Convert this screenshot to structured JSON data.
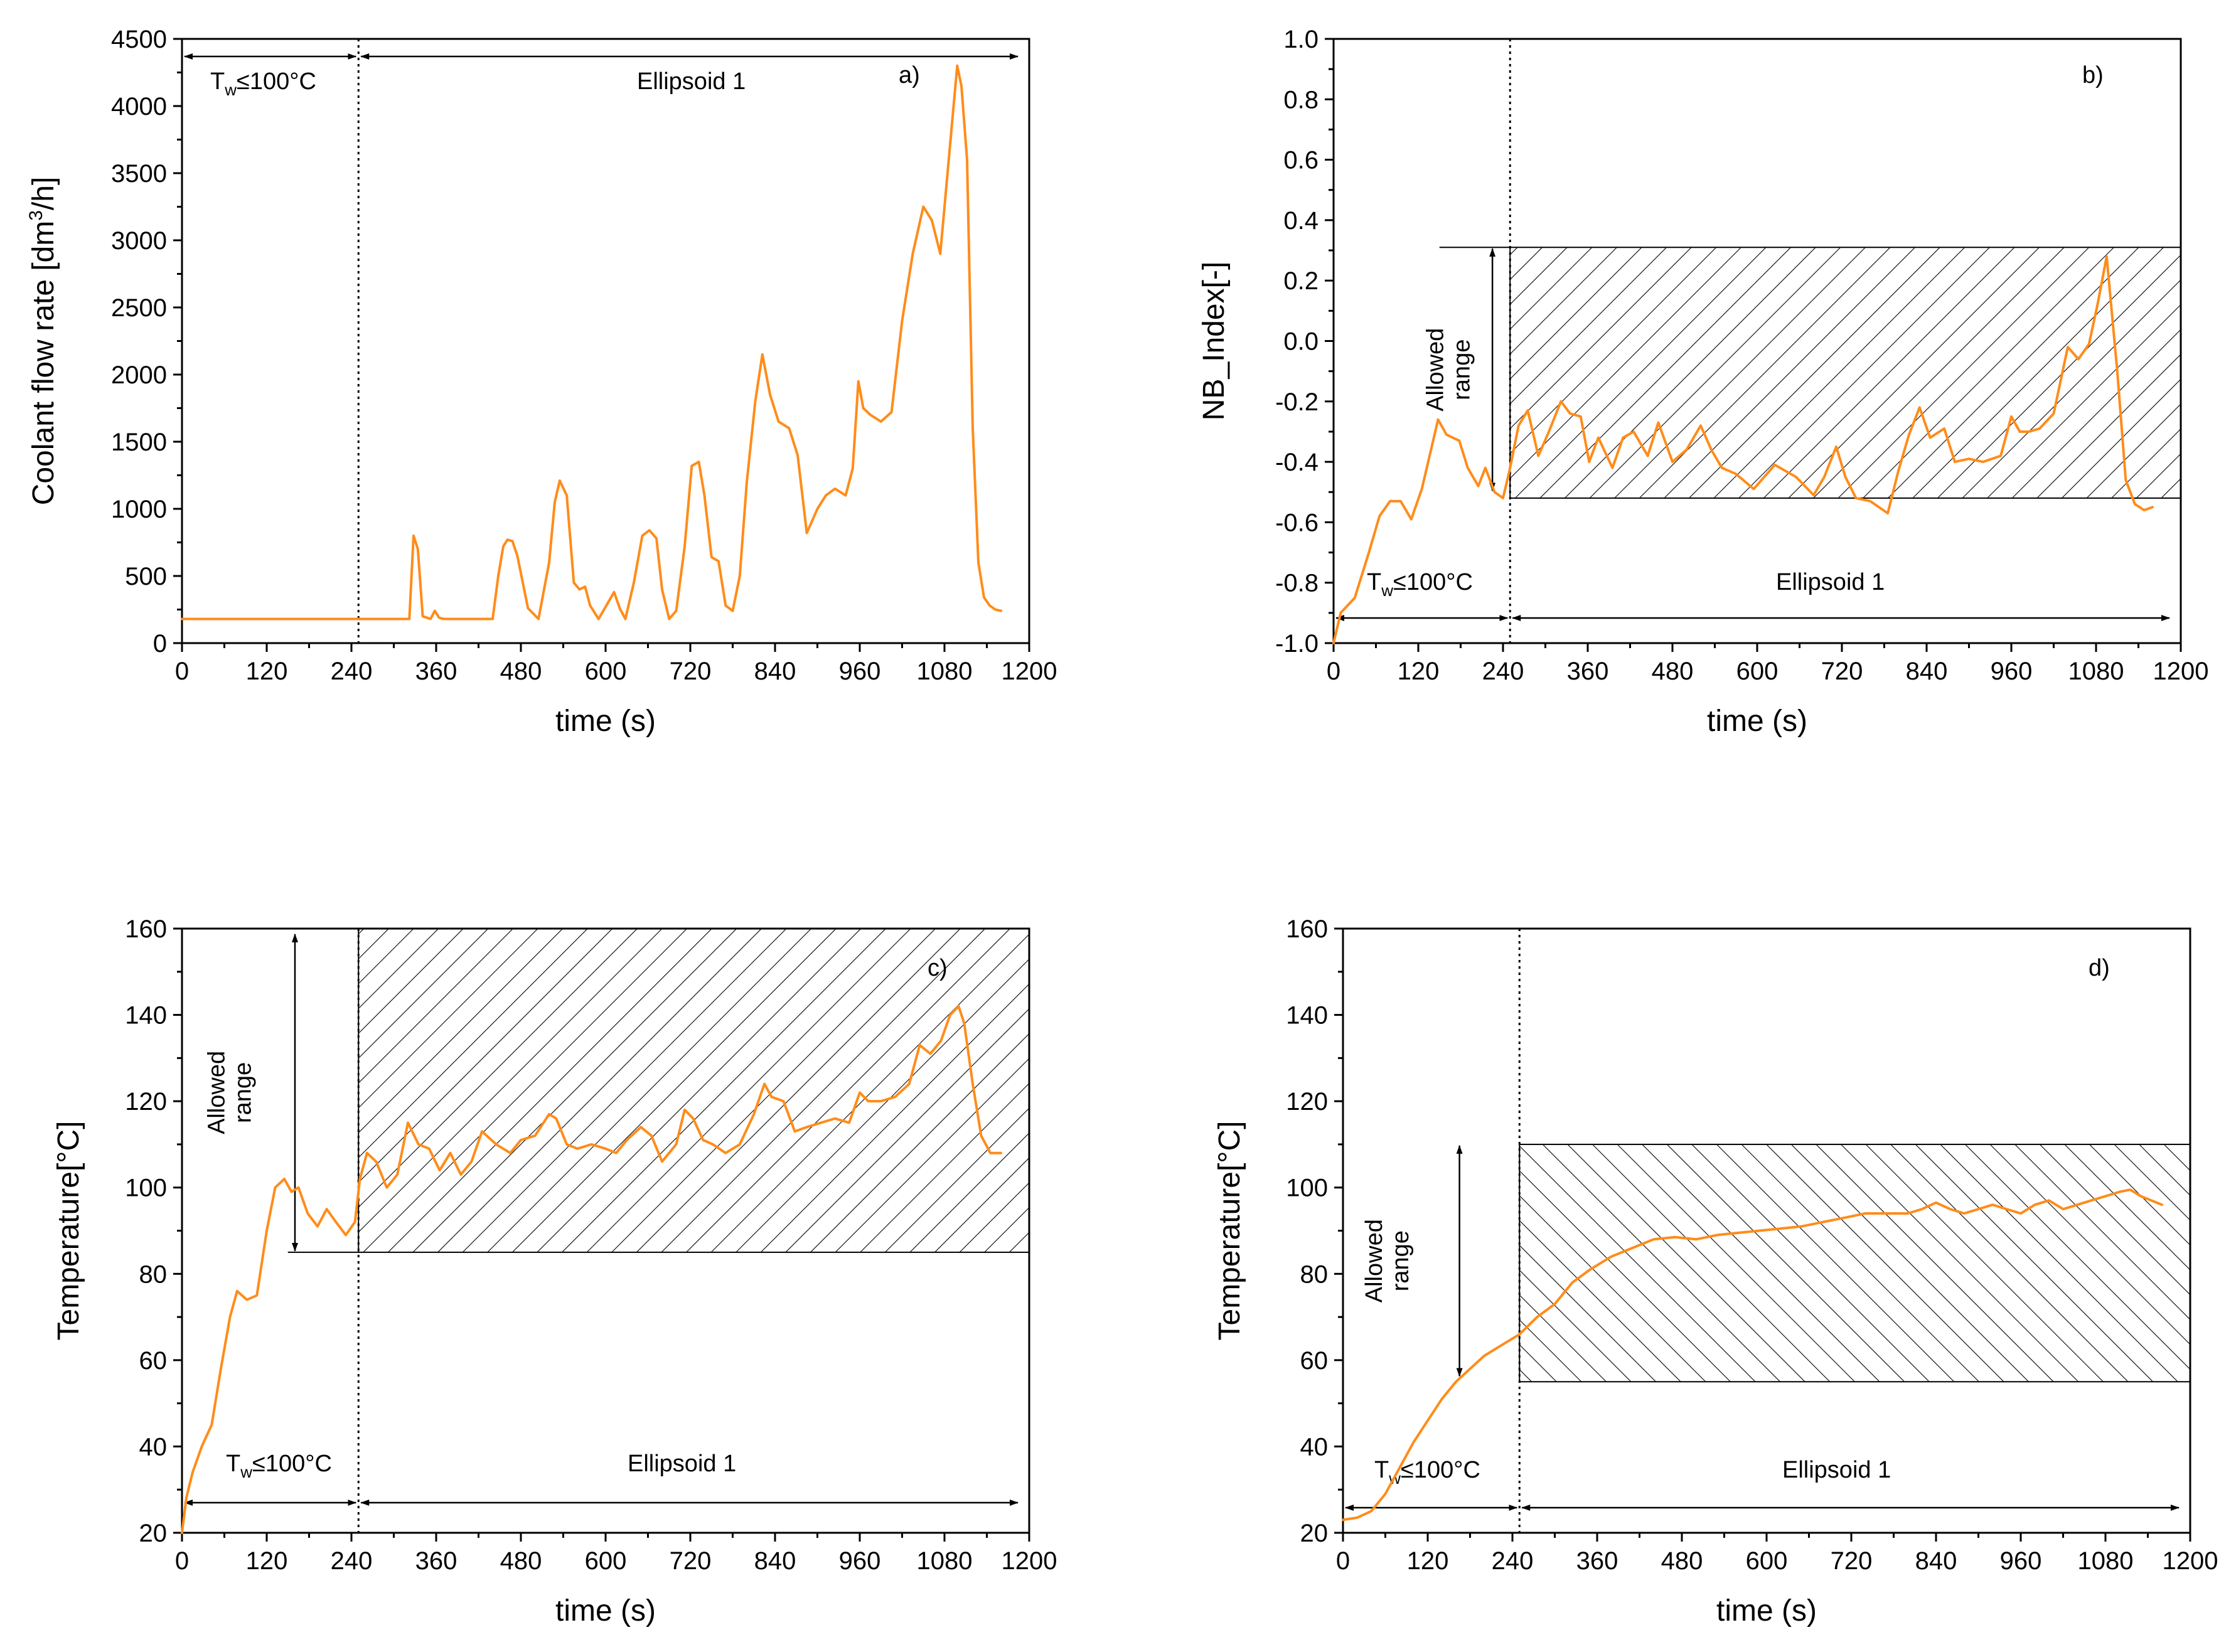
{
  "chart_data": [
    {
      "id": "a",
      "type": "line",
      "panel_label": "a)",
      "xlabel": "time (s)",
      "ylabel": "Coolant flow rate [dm3/h]",
      "ylabel_main": "Coolant flow rate [dm",
      "ylabel_sup": "3",
      "ylabel_end": "/h]",
      "xlim": [
        0,
        1200
      ],
      "ylim": [
        0,
        4500
      ],
      "xticks": [
        0,
        120,
        240,
        360,
        480,
        600,
        720,
        840,
        960,
        1080,
        1200
      ],
      "yticks": [
        0,
        500,
        1000,
        1500,
        2000,
        2500,
        3000,
        3500,
        4000,
        4500
      ],
      "divider_x": 250,
      "phase_labels": {
        "first": "T",
        "first_sub": "w",
        "first_tail": "≤100°C",
        "second": "Ellipsoid 1"
      },
      "series": [
        {
          "name": "Coolant flow rate",
          "color": "#ff8c1a",
          "x": [
            0,
            250,
            322,
            328,
            334,
            341,
            352,
            358,
            364,
            370,
            440,
            448,
            455,
            461,
            468,
            475,
            490,
            505,
            520,
            528,
            535,
            545,
            555,
            563,
            571,
            578,
            590,
            600,
            612,
            620,
            628,
            640,
            652,
            662,
            672,
            680,
            690,
            700,
            712,
            722,
            732,
            740,
            750,
            760,
            770,
            780,
            790,
            800,
            812,
            822,
            833,
            845,
            860,
            872,
            885,
            900,
            912,
            925,
            940,
            950,
            958,
            965,
            975,
            990,
            1005,
            1020,
            1035,
            1050,
            1062,
            1074,
            1086,
            1098,
            1104,
            1112,
            1120,
            1128,
            1136,
            1144,
            1152,
            1160
          ],
          "y": [
            180,
            180,
            180,
            800,
            700,
            200,
            180,
            240,
            190,
            180,
            180,
            500,
            720,
            770,
            760,
            650,
            260,
            180,
            600,
            1050,
            1210,
            1100,
            450,
            400,
            420,
            280,
            180,
            270,
            380,
            260,
            180,
            450,
            800,
            840,
            780,
            400,
            180,
            240,
            720,
            1320,
            1350,
            1100,
            640,
            610,
            280,
            240,
            500,
            1200,
            1800,
            2150,
            1850,
            1650,
            1600,
            1400,
            820,
            1000,
            1100,
            1150,
            1100,
            1300,
            1950,
            1750,
            1700,
            1650,
            1720,
            2400,
            2900,
            3250,
            3150,
            2900,
            3600,
            4300,
            4150,
            3600,
            1600,
            600,
            340,
            280,
            250,
            240
          ]
        }
      ]
    },
    {
      "id": "b",
      "type": "line",
      "panel_label": "b)",
      "xlabel": "time (s)",
      "ylabel": "NB_Index[-]",
      "xlim": [
        0,
        1200
      ],
      "ylim": [
        -1.0,
        1.0
      ],
      "xticks": [
        0,
        120,
        240,
        360,
        480,
        600,
        720,
        840,
        960,
        1080,
        1200
      ],
      "yticks": [
        "-1.0",
        "-0.8",
        "-0.6",
        "-0.4",
        "-0.2",
        "0.0",
        "0.2",
        "0.4",
        "0.6",
        "0.8",
        "1.0"
      ],
      "divider_x": 250,
      "allowed_range": {
        "x0": 250,
        "x1": 1200,
        "y0": -0.52,
        "y1": 0.31,
        "label_line1": "Allowed",
        "label_line2": "range"
      },
      "phase_labels": {
        "first": "T",
        "first_sub": "w",
        "first_tail": "≤100°C",
        "second": "Ellipsoid 1"
      },
      "series": [
        {
          "name": "NB_Index",
          "color": "#ff8c1a",
          "x": [
            0,
            10,
            30,
            50,
            65,
            80,
            95,
            110,
            125,
            138,
            148,
            160,
            178,
            190,
            205,
            215,
            228,
            240,
            250,
            262,
            275,
            290,
            305,
            322,
            335,
            350,
            362,
            375,
            395,
            410,
            425,
            445,
            460,
            480,
            500,
            520,
            535,
            550,
            570,
            595,
            625,
            655,
            680,
            695,
            712,
            725,
            740,
            760,
            785,
            800,
            815,
            830,
            845,
            865,
            880,
            900,
            920,
            945,
            960,
            972,
            985,
            1000,
            1020,
            1040,
            1055,
            1070,
            1082,
            1095,
            1110,
            1122,
            1135,
            1148,
            1160
          ],
          "y": [
            -1.0,
            -0.9,
            -0.85,
            -0.7,
            -0.58,
            -0.53,
            -0.53,
            -0.59,
            -0.49,
            -0.36,
            -0.26,
            -0.31,
            -0.33,
            -0.42,
            -0.48,
            -0.42,
            -0.5,
            -0.52,
            -0.42,
            -0.28,
            -0.23,
            -0.38,
            -0.3,
            -0.2,
            -0.24,
            -0.25,
            -0.4,
            -0.32,
            -0.42,
            -0.32,
            -0.3,
            -0.38,
            -0.27,
            -0.4,
            -0.36,
            -0.28,
            -0.36,
            -0.42,
            -0.44,
            -0.49,
            -0.41,
            -0.45,
            -0.51,
            -0.45,
            -0.35,
            -0.45,
            -0.52,
            -0.53,
            -0.57,
            -0.43,
            -0.31,
            -0.22,
            -0.32,
            -0.29,
            -0.4,
            -0.39,
            -0.4,
            -0.38,
            -0.25,
            -0.3,
            -0.3,
            -0.29,
            -0.24,
            -0.02,
            -0.06,
            -0.01,
            0.12,
            0.28,
            -0.1,
            -0.46,
            -0.54,
            -0.56,
            -0.55
          ]
        }
      ]
    },
    {
      "id": "c",
      "type": "line",
      "panel_label": "c)",
      "xlabel": "time (s)",
      "ylabel": "Temperature[°C]",
      "xlim": [
        0,
        1200
      ],
      "ylim": [
        20,
        160
      ],
      "xticks": [
        0,
        120,
        240,
        360,
        480,
        600,
        720,
        840,
        960,
        1080,
        1200
      ],
      "yticks": [
        20,
        40,
        60,
        80,
        100,
        120,
        140,
        160
      ],
      "divider_x": 250,
      "allowed_range": {
        "x0": 250,
        "x1": 1200,
        "y0": 85,
        "y1": 160,
        "label_line1": "Allowed",
        "label_line2": "range"
      },
      "phase_labels": {
        "first": "T",
        "first_sub": "w",
        "first_tail": "≤100°C",
        "second": "Ellipsoid 1"
      },
      "series": [
        {
          "name": "Temperature",
          "color": "#ff8c1a",
          "x": [
            0,
            6,
            15,
            28,
            42,
            55,
            68,
            78,
            92,
            106,
            120,
            132,
            145,
            155,
            165,
            178,
            192,
            205,
            218,
            232,
            245,
            252,
            262,
            275,
            290,
            305,
            320,
            335,
            350,
            365,
            380,
            395,
            410,
            425,
            445,
            465,
            480,
            500,
            520,
            530,
            545,
            560,
            580,
            600,
            615,
            630,
            650,
            665,
            680,
            700,
            712,
            724,
            738,
            752,
            770,
            790,
            810,
            825,
            835,
            852,
            868,
            885,
            905,
            925,
            945,
            960,
            972,
            990,
            1010,
            1030,
            1045,
            1060,
            1075,
            1088,
            1100,
            1108,
            1120,
            1132,
            1145,
            1160
          ],
          "y": [
            20,
            28,
            34,
            40,
            45,
            58,
            70,
            76,
            74,
            75,
            90,
            100,
            102,
            99,
            100,
            94,
            91,
            95,
            92,
            89,
            92,
            102,
            108,
            106,
            100,
            103,
            115,
            110,
            109,
            104,
            108,
            103,
            106,
            113,
            110,
            108,
            111,
            112,
            117,
            116,
            110,
            109,
            110,
            109,
            108,
            111,
            114,
            112,
            106,
            110,
            118,
            116,
            111,
            110,
            108,
            110,
            117,
            124,
            121,
            120,
            113,
            114,
            115,
            116,
            115,
            122,
            120,
            120,
            121,
            124,
            133,
            131,
            134,
            140,
            142,
            138,
            124,
            112,
            108,
            108
          ]
        }
      ]
    },
    {
      "id": "d",
      "type": "line",
      "panel_label": "d)",
      "xlabel": "time (s)",
      "ylabel": "Temperature[°C]",
      "xlim": [
        0,
        1200
      ],
      "ylim": [
        20,
        160
      ],
      "xticks": [
        0,
        120,
        240,
        360,
        480,
        600,
        720,
        840,
        960,
        1080,
        1200
      ],
      "yticks": [
        20,
        40,
        60,
        80,
        100,
        120,
        140,
        160
      ],
      "divider_x": 250,
      "allowed_range": {
        "x0": 250,
        "x1": 1200,
        "y0": 55,
        "y1": 110,
        "label_line1": "Allowed",
        "label_line2": "range"
      },
      "phase_labels": {
        "first": "T",
        "first_sub": "w",
        "first_tail": "≤100°C",
        "second": "Ellipsoid 1"
      },
      "series": [
        {
          "name": "Temperature",
          "color": "#ff8c1a",
          "x": [
            0,
            20,
            40,
            60,
            80,
            100,
            120,
            140,
            160,
            180,
            200,
            220,
            240,
            250,
            275,
            300,
            325,
            350,
            380,
            410,
            440,
            470,
            500,
            530,
            560,
            590,
            620,
            650,
            680,
            710,
            740,
            770,
            800,
            820,
            840,
            860,
            880,
            900,
            920,
            940,
            960,
            980,
            1000,
            1020,
            1040,
            1060,
            1080,
            1100,
            1115,
            1130,
            1145,
            1160
          ],
          "y": [
            23,
            23.5,
            25,
            29,
            35,
            41,
            46,
            51,
            55,
            58,
            61,
            63,
            65,
            66,
            70,
            73,
            78,
            81,
            84,
            86,
            88,
            88.5,
            88,
            89,
            89.5,
            90,
            90.5,
            91,
            92,
            93,
            94,
            94,
            94,
            95,
            96.5,
            95,
            94,
            95,
            96,
            95,
            94,
            96,
            97,
            95,
            96,
            97,
            98,
            99,
            99.5,
            98,
            97,
            96
          ]
        }
      ]
    }
  ]
}
